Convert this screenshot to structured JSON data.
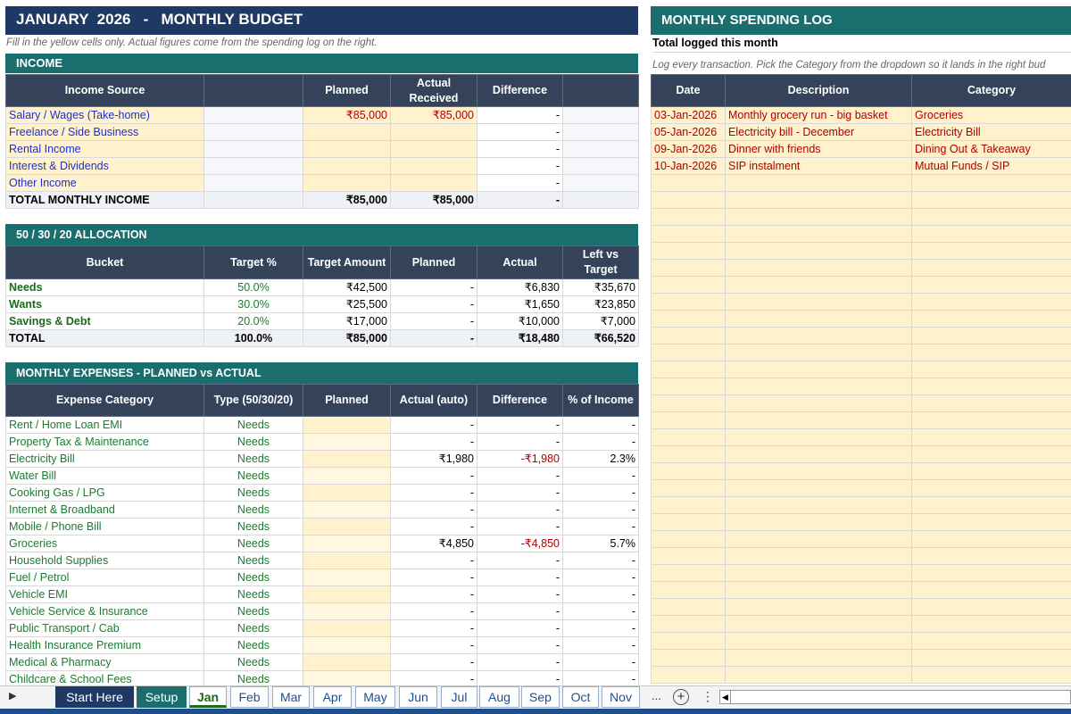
{
  "budget": {
    "title": "JANUARY  2026   -   MONTHLY BUDGET",
    "hint": "Fill in the yellow cells only. Actual figures come from the spending log on the right."
  },
  "income": {
    "section_title": "INCOME",
    "headers": [
      "Income Source",
      "",
      "Planned",
      "Actual Received",
      "Difference",
      ""
    ],
    "rows": [
      {
        "source": "Salary / Wages (Take-home)",
        "planned": "₹85,000",
        "actual": "₹85,000",
        "diff": "-"
      },
      {
        "source": "Freelance / Side Business",
        "planned": "",
        "actual": "",
        "diff": "-"
      },
      {
        "source": "Rental Income",
        "planned": "",
        "actual": "",
        "diff": "-"
      },
      {
        "source": "Interest & Dividends",
        "planned": "",
        "actual": "",
        "diff": "-"
      },
      {
        "source": "Other Income",
        "planned": "",
        "actual": "",
        "diff": "-"
      }
    ],
    "total": {
      "label": "TOTAL MONTHLY INCOME",
      "planned": "₹85,000",
      "actual": "₹85,000",
      "diff": "-"
    }
  },
  "allocation": {
    "section_title": "50 / 30 / 20 ALLOCATION",
    "headers": [
      "Bucket",
      "Target %",
      "Target Amount",
      "Planned",
      "Actual",
      "Left vs Target"
    ],
    "rows": [
      {
        "bucket": "Needs",
        "pct": "50.0%",
        "amount": "₹42,500",
        "planned": "-",
        "actual": "₹6,830",
        "left": "₹35,670"
      },
      {
        "bucket": "Wants",
        "pct": "30.0%",
        "amount": "₹25,500",
        "planned": "-",
        "actual": "₹1,650",
        "left": "₹23,850"
      },
      {
        "bucket": "Savings & Debt",
        "pct": "20.0%",
        "amount": "₹17,000",
        "planned": "-",
        "actual": "₹10,000",
        "left": "₹7,000"
      }
    ],
    "total": {
      "bucket": "TOTAL",
      "pct": "100.0%",
      "amount": "₹85,000",
      "planned": "-",
      "actual": "₹18,480",
      "left": "₹66,520"
    }
  },
  "expenses": {
    "section_title": "MONTHLY EXPENSES  -  PLANNED vs ACTUAL",
    "headers": [
      "Expense Category",
      "Type (50/30/20)",
      "Planned",
      "Actual (auto)",
      "Difference",
      "% of Income"
    ],
    "rows": [
      {
        "cat": "Rent / Home Loan EMI",
        "type": "Needs",
        "actual": "-",
        "diff": "-",
        "pct": "-"
      },
      {
        "cat": "Property Tax & Maintenance",
        "type": "Needs",
        "actual": "-",
        "diff": "-",
        "pct": "-"
      },
      {
        "cat": "Electricity Bill",
        "type": "Needs",
        "actual": "₹1,980",
        "diff": "-₹1,980",
        "pct": "2.3%"
      },
      {
        "cat": "Water Bill",
        "type": "Needs",
        "actual": "-",
        "diff": "-",
        "pct": "-"
      },
      {
        "cat": "Cooking Gas / LPG",
        "type": "Needs",
        "actual": "-",
        "diff": "-",
        "pct": "-"
      },
      {
        "cat": "Internet & Broadband",
        "type": "Needs",
        "actual": "-",
        "diff": "-",
        "pct": "-"
      },
      {
        "cat": "Mobile / Phone Bill",
        "type": "Needs",
        "actual": "-",
        "diff": "-",
        "pct": "-"
      },
      {
        "cat": "Groceries",
        "type": "Needs",
        "actual": "₹4,850",
        "diff": "-₹4,850",
        "pct": "5.7%"
      },
      {
        "cat": "Household Supplies",
        "type": "Needs",
        "actual": "-",
        "diff": "-",
        "pct": "-"
      },
      {
        "cat": "Fuel / Petrol",
        "type": "Needs",
        "actual": "-",
        "diff": "-",
        "pct": "-"
      },
      {
        "cat": "Vehicle EMI",
        "type": "Needs",
        "actual": "-",
        "diff": "-",
        "pct": "-"
      },
      {
        "cat": "Vehicle Service & Insurance",
        "type": "Needs",
        "actual": "-",
        "diff": "-",
        "pct": "-"
      },
      {
        "cat": "Public Transport / Cab",
        "type": "Needs",
        "actual": "-",
        "diff": "-",
        "pct": "-"
      },
      {
        "cat": "Health Insurance Premium",
        "type": "Needs",
        "actual": "-",
        "diff": "-",
        "pct": "-"
      },
      {
        "cat": "Medical & Pharmacy",
        "type": "Needs",
        "actual": "-",
        "diff": "-",
        "pct": "-"
      },
      {
        "cat": "Childcare & School Fees",
        "type": "Needs",
        "actual": "-",
        "diff": "-",
        "pct": "-"
      }
    ]
  },
  "log": {
    "title": "MONTHLY SPENDING LOG",
    "total_label": "Total logged this month",
    "hint": "Log every transaction. Pick the Category from the dropdown so it lands in the right bud",
    "headers": [
      "Date",
      "Description",
      "Category"
    ],
    "rows": [
      {
        "date": "03-Jan-2026",
        "desc": "Monthly grocery run - big basket",
        "cat": "Groceries"
      },
      {
        "date": "05-Jan-2026",
        "desc": "Electricity bill - December",
        "cat": "Electricity Bill"
      },
      {
        "date": "09-Jan-2026",
        "desc": "Dinner with friends",
        "cat": "Dining Out & Takeaway"
      },
      {
        "date": "10-Jan-2026",
        "desc": "SIP instalment",
        "cat": "Mutual Funds / SIP"
      }
    ],
    "empty_rows": 30
  },
  "tabs": [
    "Start Here",
    "Setup",
    "Jan",
    "Feb",
    "Mar",
    "Apr",
    "May",
    "Jun",
    "Jul",
    "Aug",
    "Sep",
    "Oct",
    "Nov"
  ],
  "active_tab": "Jan",
  "tabbar": {
    "more": "...",
    "add": "+",
    "options": "⋮"
  }
}
